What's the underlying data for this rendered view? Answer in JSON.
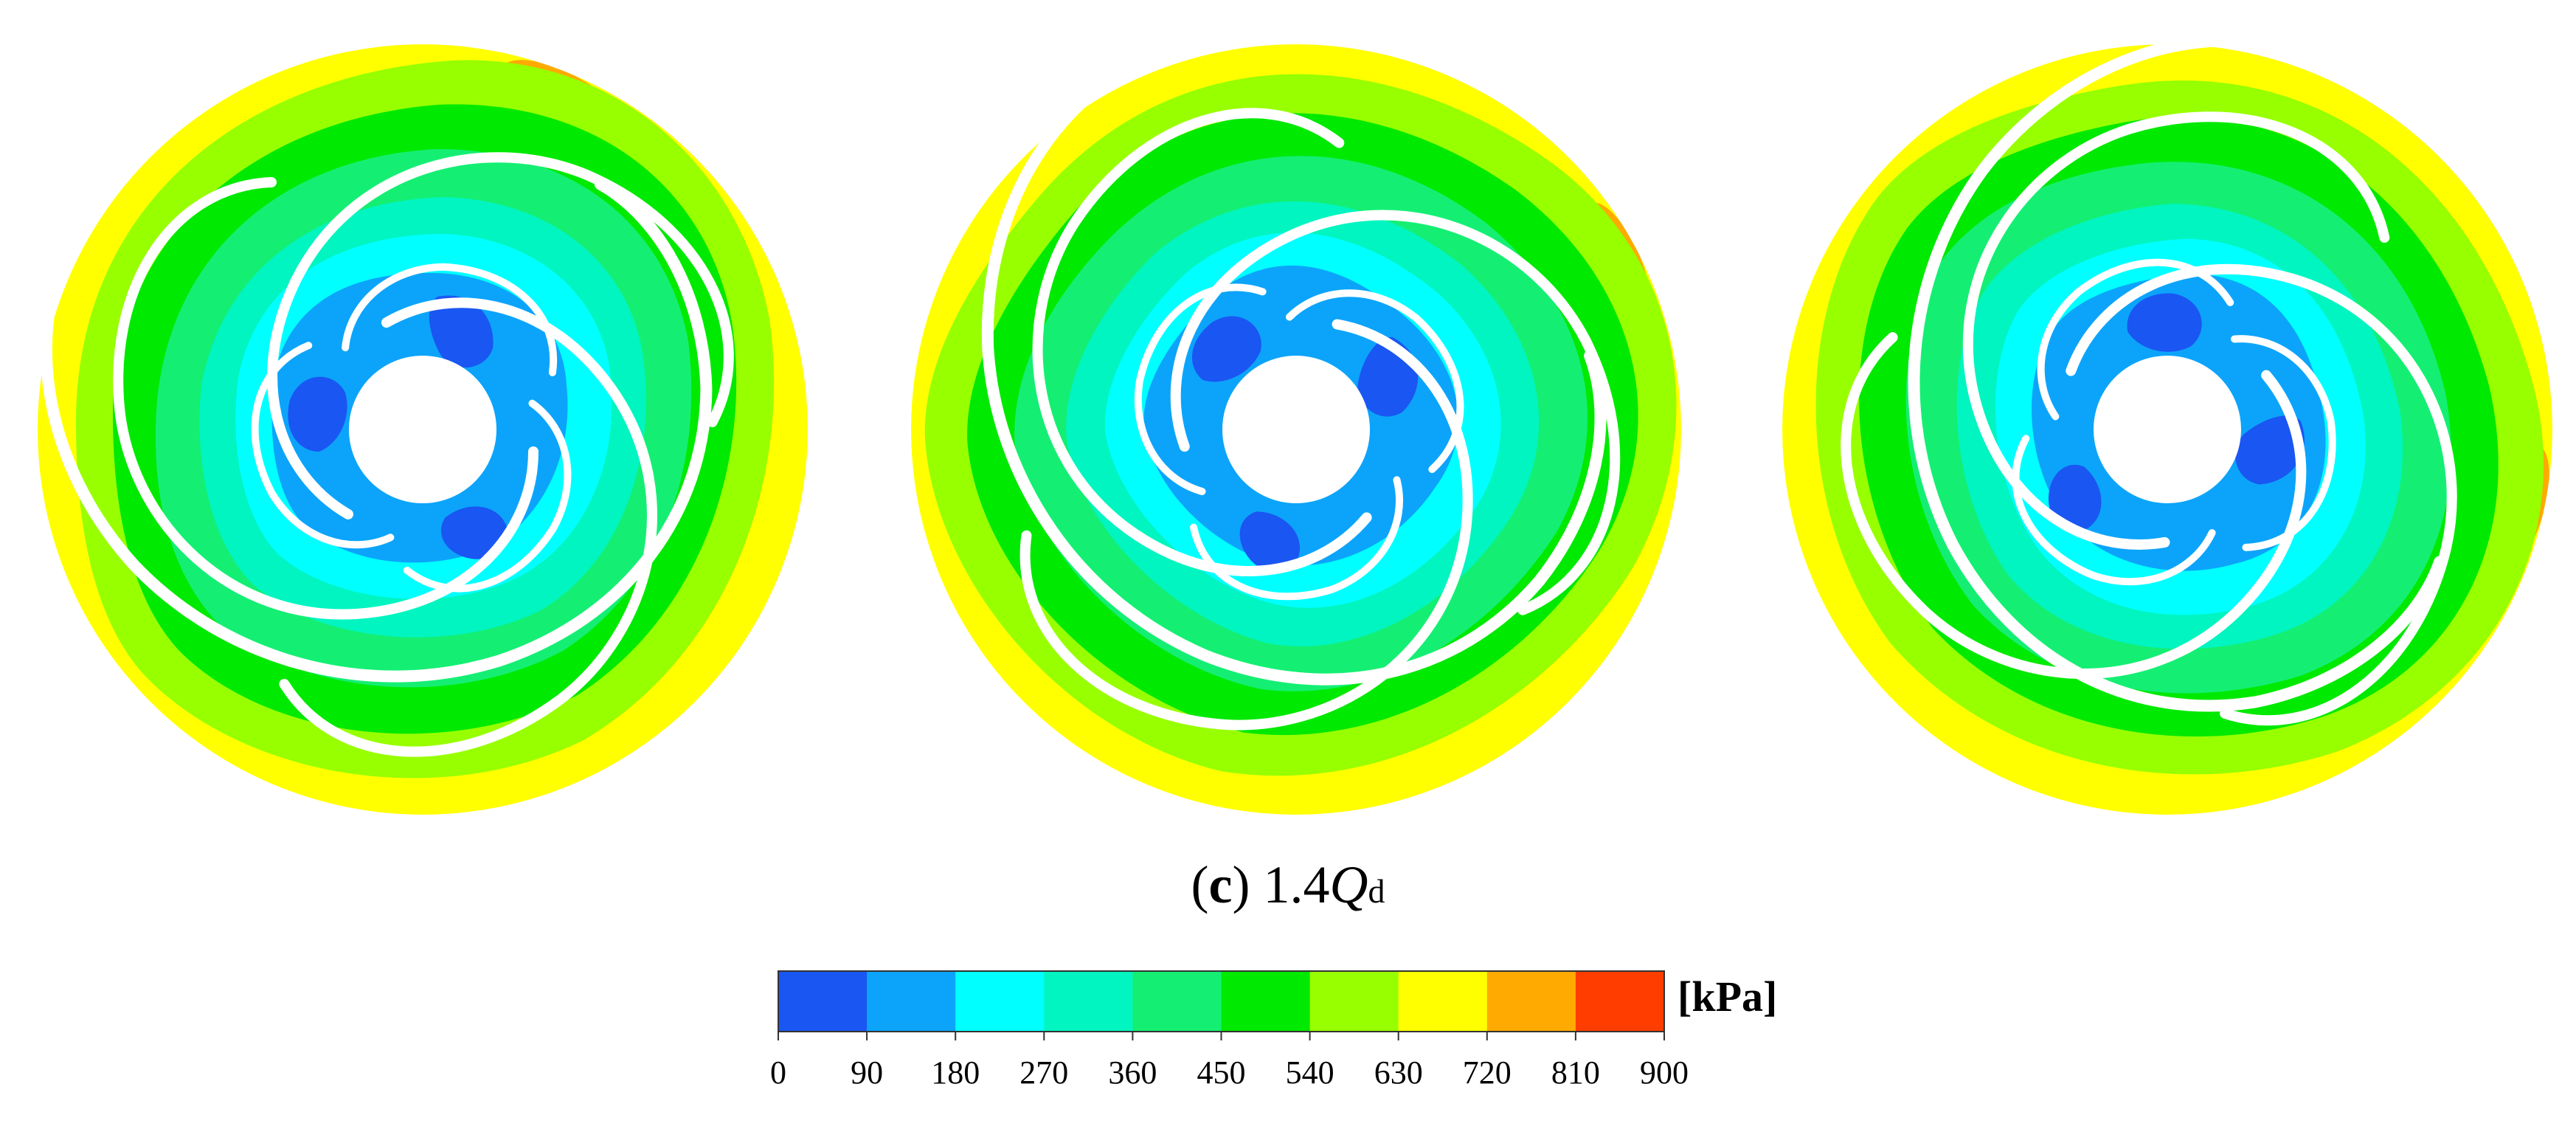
{
  "figure": {
    "panels": [
      {
        "name": "impeller-contour-1",
        "rotation_deg": 0
      },
      {
        "name": "impeller-contour-2",
        "rotation_deg": 40
      },
      {
        "name": "impeller-contour-3",
        "rotation_deg": 80
      }
    ]
  },
  "caption": {
    "open_paren": "(",
    "label": "c",
    "close_paren": ")",
    "value": " 1.4",
    "symbol": "Q",
    "subscript": "d"
  },
  "colorbar": {
    "unit": "[kPa]",
    "ticks": [
      "0",
      "90",
      "180",
      "270",
      "360",
      "450",
      "540",
      "630",
      "720",
      "810",
      "900"
    ],
    "colors": [
      "#1a56f2",
      "#0ca4fa",
      "#00ffff",
      "#00f5c0",
      "#14ef73",
      "#00e900",
      "#97ff00",
      "#ffff00",
      "#ffaa00",
      "#ff3d00"
    ]
  }
}
